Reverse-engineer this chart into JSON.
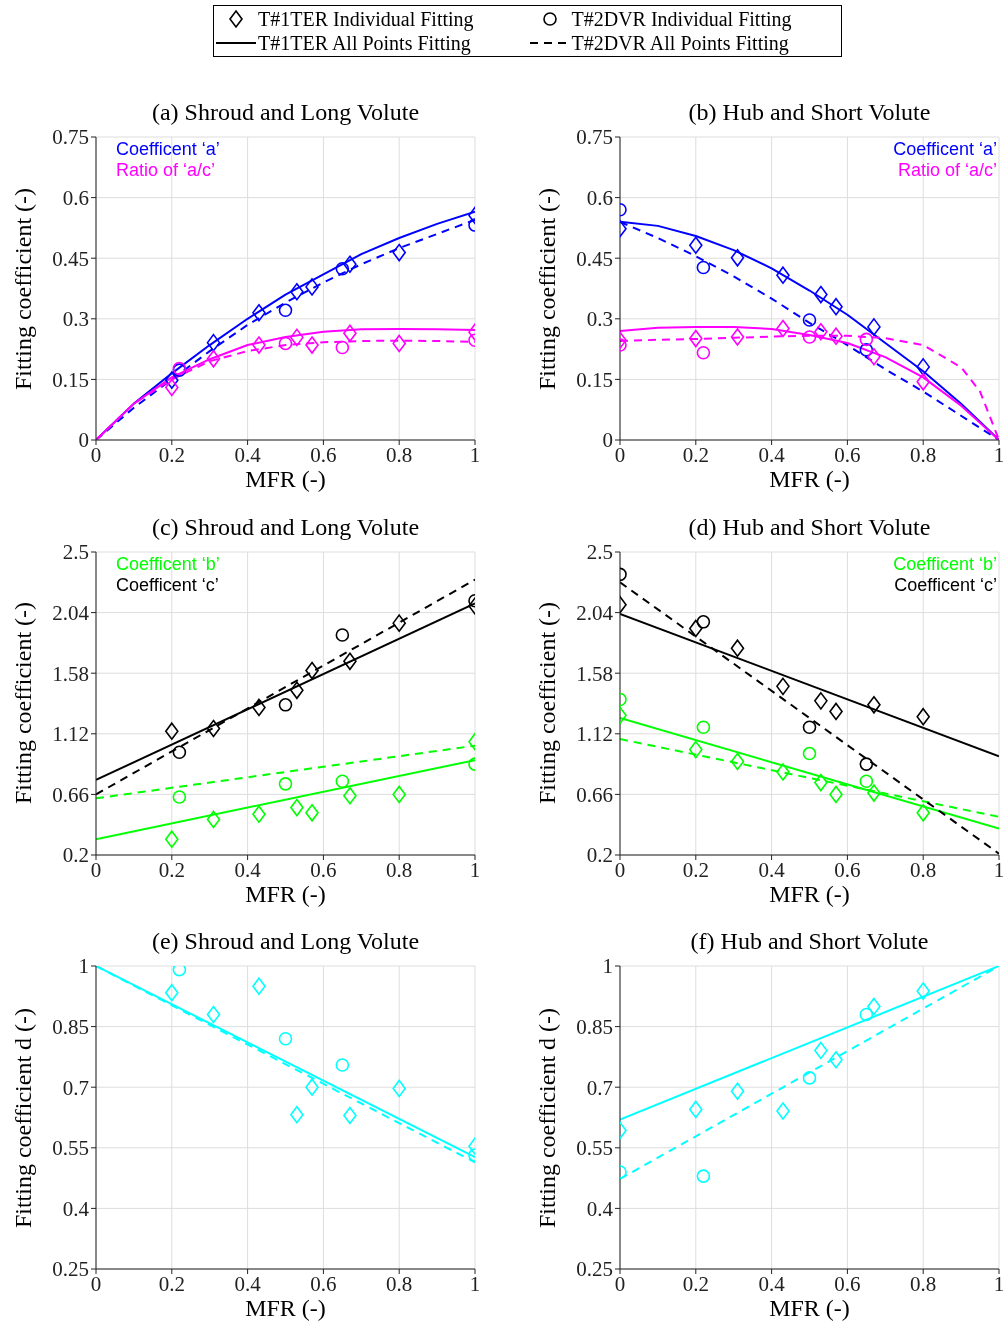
{
  "chart_data": [
    {
      "type": "line",
      "title": "(a) Shroud and Long Volute",
      "xlabel": "MFR (-)",
      "ylabel": "Fitting coefficient (-)",
      "xlim": [
        0,
        1
      ],
      "xticks": [
        0,
        0.2,
        0.4,
        0.6,
        0.8,
        1
      ],
      "ylim": [
        0,
        0.75
      ],
      "yticks": [
        0,
        0.15,
        0.3,
        0.45,
        0.6,
        0.75
      ],
      "grid": true,
      "annotations": [
        "Coefficent ‘a’",
        "Ratio of ‘a/c’"
      ],
      "series": [
        {
          "type": "scatter",
          "marker": "diamond",
          "color": "#0000ff",
          "x": [
            0.2,
            0.31,
            0.43,
            0.53,
            0.57,
            0.67,
            0.8,
            1
          ],
          "values": [
            0.148,
            0.241,
            0.315,
            0.367,
            0.379,
            0.435,
            0.464,
            0.556
          ]
        },
        {
          "type": "scatter",
          "marker": "circle",
          "color": "#0000ff",
          "x": [
            0.22,
            0.5,
            0.65,
            1
          ],
          "values": [
            0.173,
            0.321,
            0.424,
            0.532
          ]
        },
        {
          "type": "line",
          "marker": "none",
          "line_style": "solid",
          "color": "#0000ff",
          "x": [
            0,
            0.1,
            0.2,
            0.3,
            0.4,
            0.5,
            0.6,
            0.7,
            0.8,
            0.9,
            1
          ],
          "values": [
            0,
            0.09,
            0.165,
            0.235,
            0.3,
            0.36,
            0.41,
            0.46,
            0.5,
            0.535,
            0.565
          ]
        },
        {
          "type": "line",
          "marker": "none",
          "line_style": "dashed",
          "color": "#0000ff",
          "x": [
            0,
            0.1,
            0.2,
            0.3,
            0.4,
            0.5,
            0.6,
            0.7,
            0.8,
            0.9,
            1
          ],
          "values": [
            0,
            0.08,
            0.15,
            0.22,
            0.285,
            0.34,
            0.39,
            0.435,
            0.475,
            0.51,
            0.545
          ]
        },
        {
          "type": "scatter",
          "marker": "diamond",
          "color": "#ff00ff",
          "x": [
            0.2,
            0.31,
            0.43,
            0.53,
            0.57,
            0.67,
            0.8,
            1
          ],
          "values": [
            0.13,
            0.201,
            0.235,
            0.254,
            0.235,
            0.264,
            0.239,
            0.267
          ]
        },
        {
          "type": "scatter",
          "marker": "circle",
          "color": "#ff00ff",
          "x": [
            0.22,
            0.5,
            0.65,
            1
          ],
          "values": [
            0.177,
            0.239,
            0.229,
            0.247
          ]
        },
        {
          "type": "line",
          "marker": "none",
          "line_style": "solid",
          "color": "#ff00ff",
          "x": [
            0,
            0.1,
            0.2,
            0.3,
            0.4,
            0.5,
            0.6,
            0.7,
            0.8,
            0.9,
            1
          ],
          "values": [
            0,
            0.09,
            0.155,
            0.2,
            0.235,
            0.255,
            0.268,
            0.274,
            0.275,
            0.274,
            0.272
          ]
        },
        {
          "type": "line",
          "marker": "none",
          "line_style": "dashed",
          "color": "#ff00ff",
          "x": [
            0,
            0.1,
            0.2,
            0.3,
            0.4,
            0.5,
            0.6,
            0.7,
            0.8,
            0.9,
            1
          ],
          "values": [
            0,
            0.09,
            0.15,
            0.195,
            0.22,
            0.235,
            0.242,
            0.245,
            0.246,
            0.245,
            0.243
          ]
        }
      ]
    },
    {
      "type": "line",
      "title": "(b) Hub and Short Volute",
      "xlabel": "MFR (-)",
      "ylabel": "Fitting coefficient (-)",
      "xlim": [
        0,
        1
      ],
      "xticks": [
        0,
        0.2,
        0.4,
        0.6,
        0.8,
        1
      ],
      "ylim": [
        0,
        0.75
      ],
      "yticks": [
        0,
        0.15,
        0.3,
        0.45,
        0.6,
        0.75
      ],
      "grid": true,
      "annotations": [
        "Coefficent ‘a’",
        "Ratio of ‘a/c’"
      ],
      "series": [
        {
          "type": "scatter",
          "marker": "diamond",
          "color": "#0000ff",
          "x": [
            0,
            0.2,
            0.31,
            0.43,
            0.53,
            0.57,
            0.67,
            0.8
          ],
          "values": [
            0.523,
            0.482,
            0.451,
            0.408,
            0.36,
            0.33,
            0.28,
            0.181
          ]
        },
        {
          "type": "scatter",
          "marker": "circle",
          "color": "#0000ff",
          "x": [
            0,
            0.22,
            0.5,
            0.65
          ],
          "values": [
            0.57,
            0.427,
            0.297,
            0.223
          ]
        },
        {
          "type": "line",
          "marker": "none",
          "line_style": "solid",
          "color": "#0000ff",
          "x": [
            0,
            0.1,
            0.2,
            0.3,
            0.4,
            0.5,
            0.6,
            0.7,
            0.8,
            0.9,
            1
          ],
          "values": [
            0.54,
            0.53,
            0.505,
            0.47,
            0.425,
            0.37,
            0.31,
            0.24,
            0.17,
            0.09,
            0
          ]
        },
        {
          "type": "line",
          "marker": "none",
          "line_style": "dashed",
          "color": "#0000ff",
          "x": [
            0,
            0.1,
            0.2,
            0.3,
            0.4,
            0.5,
            0.6,
            0.7,
            0.8,
            0.9,
            1
          ],
          "values": [
            0.54,
            0.5,
            0.455,
            0.405,
            0.35,
            0.29,
            0.235,
            0.175,
            0.12,
            0.06,
            0
          ]
        },
        {
          "type": "scatter",
          "marker": "diamond",
          "color": "#ff00ff",
          "x": [
            0,
            0.2,
            0.31,
            0.43,
            0.53,
            0.57,
            0.67,
            0.8
          ],
          "values": [
            0.247,
            0.251,
            0.255,
            0.276,
            0.268,
            0.257,
            0.206,
            0.144
          ]
        },
        {
          "type": "scatter",
          "marker": "circle",
          "color": "#ff00ff",
          "x": [
            0,
            0.22,
            0.5,
            0.65
          ],
          "values": [
            0.235,
            0.216,
            0.255,
            0.249
          ]
        },
        {
          "type": "line",
          "marker": "none",
          "line_style": "solid",
          "color": "#ff00ff",
          "x": [
            0,
            0.1,
            0.2,
            0.3,
            0.4,
            0.5,
            0.6,
            0.7,
            0.8,
            0.9,
            1
          ],
          "values": [
            0.27,
            0.278,
            0.28,
            0.28,
            0.275,
            0.26,
            0.24,
            0.205,
            0.155,
            0.085,
            0
          ]
        },
        {
          "type": "line",
          "marker": "none",
          "line_style": "dashed",
          "color": "#ff00ff",
          "x": [
            0,
            0.1,
            0.2,
            0.3,
            0.4,
            0.5,
            0.6,
            0.7,
            0.8,
            0.9,
            0.95,
            1
          ],
          "values": [
            0.245,
            0.248,
            0.25,
            0.253,
            0.256,
            0.258,
            0.258,
            0.252,
            0.235,
            0.18,
            0.12,
            0
          ]
        }
      ]
    },
    {
      "type": "line",
      "title": "(c) Shroud and Long Volute",
      "xlabel": "MFR (-)",
      "ylabel": "Fitting coefficient (-)",
      "xlim": [
        0,
        1
      ],
      "xticks": [
        0,
        0.2,
        0.4,
        0.6,
        0.8,
        1
      ],
      "ylim": [
        0.2,
        2.5
      ],
      "yticks": [
        0.2,
        0.66,
        1.12,
        1.58,
        2.04,
        2.5
      ],
      "grid": true,
      "legend": "top",
      "annotations": [
        "Coefficent ‘b’",
        "Coefficent ‘c’"
      ],
      "series": [
        {
          "type": "scatter",
          "marker": "diamond",
          "color": "#00ff00",
          "x": [
            0.2,
            0.31,
            0.43,
            0.53,
            0.57,
            0.67,
            0.8,
            1
          ],
          "values": [
            0.32,
            0.47,
            0.51,
            0.56,
            0.52,
            0.65,
            0.66,
            1.06
          ]
        },
        {
          "type": "scatter",
          "marker": "circle",
          "color": "#00ff00",
          "x": [
            0.22,
            0.5,
            0.65,
            1
          ],
          "values": [
            0.64,
            0.74,
            0.76,
            0.89
          ]
        },
        {
          "type": "line",
          "marker": "none",
          "line_style": "solid",
          "color": "#00ff00",
          "x": [
            0,
            1
          ],
          "values": [
            0.32,
            0.92
          ]
        },
        {
          "type": "line",
          "marker": "none",
          "line_style": "dashed",
          "color": "#00ff00",
          "x": [
            0,
            1
          ],
          "values": [
            0.63,
            1.03
          ]
        },
        {
          "name": "T#1TER Individual Fitting",
          "type": "scatter",
          "marker": "diamond",
          "color": "#000000",
          "x": [
            0.2,
            0.31,
            0.43,
            0.53,
            0.57,
            0.67,
            0.8,
            1
          ],
          "values": [
            1.14,
            1.16,
            1.32,
            1.45,
            1.6,
            1.67,
            1.96,
            2.09
          ]
        },
        {
          "name": "T#2DVR Individual Fitting",
          "type": "scatter",
          "marker": "circle",
          "color": "#000000",
          "x": [
            0.22,
            0.5,
            0.65,
            1
          ],
          "values": [
            0.98,
            1.34,
            1.87,
            2.13
          ]
        },
        {
          "name": "T#1TER All Points Fitting",
          "type": "line",
          "marker": "none",
          "line_style": "solid",
          "color": "#000000",
          "x": [
            0,
            1
          ],
          "values": [
            0.77,
            2.11
          ]
        },
        {
          "name": "T#2DVR All Points Fitting",
          "type": "line",
          "marker": "none",
          "line_style": "dashed",
          "color": "#000000",
          "x": [
            0,
            1
          ],
          "values": [
            0.66,
            2.29
          ]
        }
      ]
    },
    {
      "type": "line",
      "title": "(d) Hub and Short Volute",
      "xlabel": "MFR (-)",
      "ylabel": "Fitting coefficient (-)",
      "xlim": [
        0,
        1
      ],
      "xticks": [
        0,
        0.2,
        0.4,
        0.6,
        0.8,
        1
      ],
      "ylim": [
        0.2,
        2.5
      ],
      "yticks": [
        0.2,
        0.66,
        1.12,
        1.58,
        2.04,
        2.5
      ],
      "grid": true,
      "annotations": [
        "Coefficent ‘b’",
        "Coefficent ‘c’"
      ],
      "series": [
        {
          "type": "scatter",
          "marker": "diamond",
          "color": "#00ff00",
          "x": [
            0,
            0.2,
            0.31,
            0.43,
            0.53,
            0.57,
            0.67,
            0.8
          ],
          "values": [
            1.26,
            1.0,
            0.91,
            0.83,
            0.75,
            0.66,
            0.67,
            0.52
          ]
        },
        {
          "type": "scatter",
          "marker": "circle",
          "color": "#00ff00",
          "x": [
            0,
            0.22,
            0.5,
            0.65
          ],
          "values": [
            1.38,
            1.17,
            0.97,
            0.76
          ]
        },
        {
          "type": "line",
          "marker": "none",
          "line_style": "solid",
          "color": "#00ff00",
          "x": [
            0,
            1
          ],
          "values": [
            1.24,
            0.4
          ]
        },
        {
          "type": "line",
          "marker": "none",
          "line_style": "dashed",
          "color": "#00ff00",
          "x": [
            0,
            1
          ],
          "values": [
            1.08,
            0.49
          ]
        },
        {
          "type": "scatter",
          "marker": "diamond",
          "color": "#000000",
          "x": [
            0,
            0.2,
            0.31,
            0.43,
            0.53,
            0.57,
            0.67,
            0.8
          ],
          "values": [
            2.1,
            1.92,
            1.77,
            1.48,
            1.37,
            1.29,
            1.34,
            1.25
          ]
        },
        {
          "type": "scatter",
          "marker": "circle",
          "color": "#000000",
          "x": [
            0,
            0.22,
            0.5,
            0.65
          ],
          "values": [
            2.33,
            1.97,
            1.17,
            0.89
          ]
        },
        {
          "type": "line",
          "marker": "none",
          "line_style": "solid",
          "color": "#000000",
          "x": [
            0,
            1
          ],
          "values": [
            2.03,
            0.95
          ]
        },
        {
          "type": "line",
          "marker": "none",
          "line_style": "dashed",
          "color": "#000000",
          "x": [
            0,
            1
          ],
          "values": [
            2.27,
            0.21
          ]
        }
      ]
    },
    {
      "type": "line",
      "title": "(e) Shroud and Long Volute",
      "xlabel": "MFR (-)",
      "ylabel": "Fitting coefficient d (-)",
      "xlim": [
        0,
        1
      ],
      "xticks": [
        0,
        0.2,
        0.4,
        0.6,
        0.8,
        1
      ],
      "ylim": [
        0.25,
        1
      ],
      "yticks": [
        0.25,
        0.4,
        0.55,
        0.7,
        0.85,
        1
      ],
      "grid": true,
      "series": [
        {
          "type": "scatter",
          "marker": "diamond",
          "color": "#00ffff",
          "x": [
            0.2,
            0.31,
            0.43,
            0.53,
            0.57,
            0.67,
            0.8,
            1
          ],
          "values": [
            0.934,
            0.88,
            0.95,
            0.632,
            0.7,
            0.63,
            0.697,
            0.554
          ]
        },
        {
          "type": "scatter",
          "marker": "circle",
          "color": "#00ffff",
          "x": [
            0.22,
            0.5,
            0.65,
            1
          ],
          "values": [
            0.991,
            0.82,
            0.755,
            0.532
          ]
        },
        {
          "type": "line",
          "marker": "none",
          "line_style": "solid",
          "color": "#00ffff",
          "x": [
            0,
            1
          ],
          "values": [
            1,
            0.527
          ]
        },
        {
          "type": "line",
          "marker": "none",
          "line_style": "dashed",
          "color": "#00ffff",
          "x": [
            0,
            1
          ],
          "values": [
            1,
            0.514
          ]
        }
      ]
    },
    {
      "type": "line",
      "title": "(f) Hub and Short Volute",
      "xlabel": "MFR (-)",
      "ylabel": "Fitting coefficient d (-)",
      "xlim": [
        0,
        1
      ],
      "xticks": [
        0,
        0.2,
        0.4,
        0.6,
        0.8,
        1
      ],
      "ylim": [
        0.25,
        1
      ],
      "yticks": [
        0.25,
        0.4,
        0.55,
        0.7,
        0.85,
        1
      ],
      "grid": true,
      "series": [
        {
          "type": "scatter",
          "marker": "diamond",
          "color": "#00ffff",
          "x": [
            0,
            0.2,
            0.31,
            0.43,
            0.53,
            0.57,
            0.67,
            0.8
          ],
          "values": [
            0.593,
            0.645,
            0.69,
            0.641,
            0.791,
            0.768,
            0.9,
            0.938
          ]
        },
        {
          "type": "scatter",
          "marker": "circle",
          "color": "#00ffff",
          "x": [
            0,
            0.22,
            0.5,
            0.65
          ],
          "values": [
            0.49,
            0.48,
            0.723,
            0.88
          ]
        },
        {
          "type": "line",
          "marker": "none",
          "line_style": "solid",
          "color": "#00ffff",
          "x": [
            0,
            1
          ],
          "values": [
            0.62,
            1
          ]
        },
        {
          "type": "line",
          "marker": "none",
          "line_style": "dashed",
          "color": "#00ffff",
          "x": [
            0,
            1
          ],
          "values": [
            0.473,
            1
          ]
        }
      ]
    }
  ]
}
